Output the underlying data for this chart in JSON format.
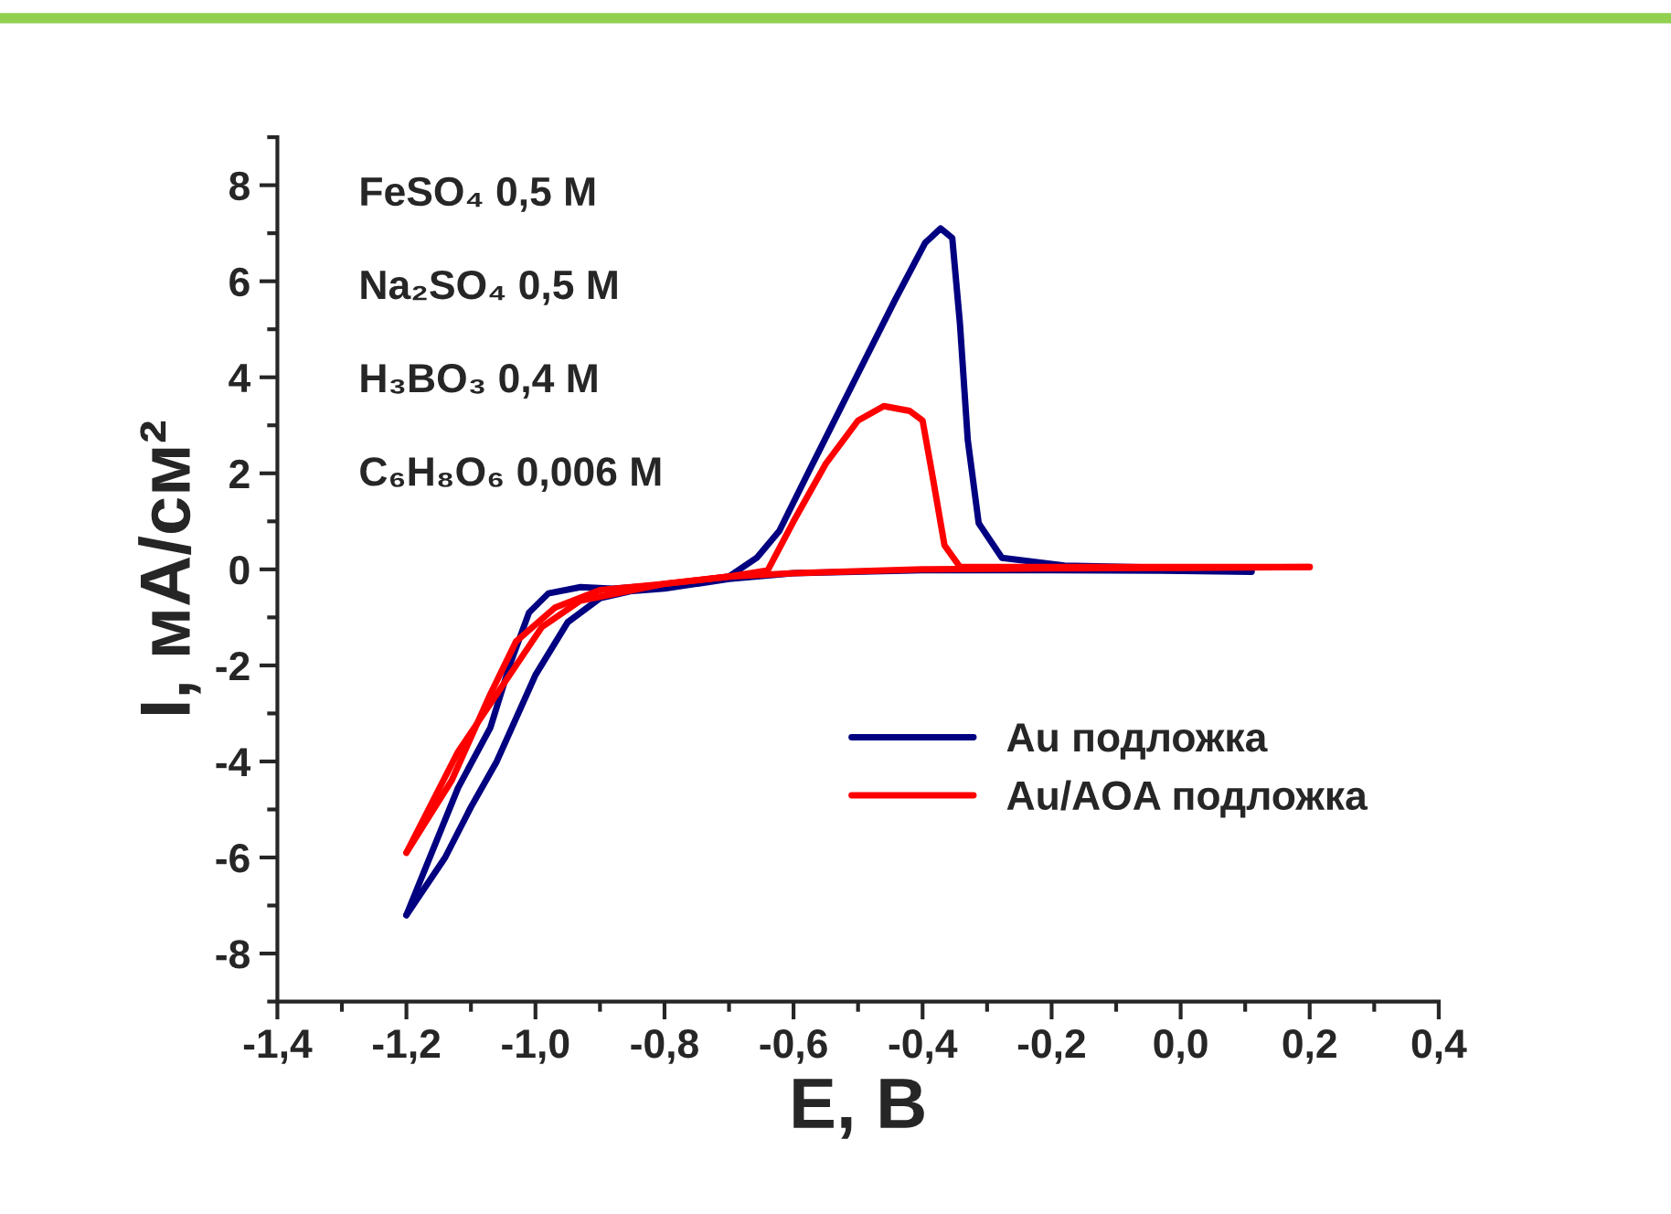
{
  "chart_data": {
    "type": "line",
    "xlabel": "E, В",
    "ylabel": "I, мА/см²",
    "annotations": [
      "FeSO₄ 0,5 M",
      "Na₂SO₄ 0,5 M",
      "H₃BO₃ 0,4 M",
      "C₆H₈O₆ 0,006 M"
    ],
    "series": [
      {
        "name": "Au подложка",
        "color": "#000080",
        "x": [
          0.11,
          0.0,
          -0.2,
          -0.4,
          -0.6,
          -0.7,
          -0.8,
          -0.85,
          -0.9,
          -0.95,
          -1.0,
          -1.06,
          -1.1,
          -1.14,
          -1.2
        ],
        "values": [
          -0.05,
          -0.03,
          -0.02,
          -0.02,
          -0.08,
          -0.2,
          -0.4,
          -0.45,
          -0.6,
          -1.1,
          -2.2,
          -4.0,
          -4.95,
          -6.0,
          -7.2
        ]
      },
      {
        "color": "#000080",
        "x": [
          -1.2,
          -1.12,
          -1.07,
          -1.04,
          -1.01,
          -0.98,
          -0.93,
          -0.88,
          -0.8,
          -0.7,
          -0.657,
          -0.622,
          -0.574,
          -0.503,
          -0.443,
          -0.396,
          -0.372,
          -0.354,
          -0.342,
          -0.33,
          -0.313,
          -0.277,
          -0.18,
          0.0,
          0.11
        ],
        "values": [
          -7.2,
          -4.55,
          -3.3,
          -2.0,
          -0.9,
          -0.5,
          -0.37,
          -0.4,
          -0.32,
          -0.15,
          0.24,
          0.8,
          2.1,
          4.0,
          5.6,
          6.8,
          7.1,
          6.9,
          5.1,
          2.7,
          0.96,
          0.24,
          0.08,
          0.03,
          0.0
        ]
      },
      {
        "name": "Au/AOA подложка",
        "color": "#ff0000",
        "x": [
          0.2,
          0.0,
          -0.2,
          -0.4,
          -0.6,
          -0.7,
          -0.8,
          -0.93,
          -0.99,
          -1.04,
          -1.12,
          -1.2
        ],
        "values": [
          0.05,
          0.03,
          0.02,
          0.0,
          -0.08,
          -0.15,
          -0.3,
          -0.65,
          -1.2,
          -2.2,
          -3.8,
          -5.9
        ]
      },
      {
        "color": "#ff0000",
        "x": [
          -1.2,
          -1.13,
          -1.07,
          -1.03,
          -0.97,
          -0.9,
          -0.8,
          -0.7,
          -0.64,
          -0.6,
          -0.55,
          -0.5,
          -0.46,
          -0.42,
          -0.4,
          -0.384,
          -0.366,
          -0.342,
          -0.2,
          0.0,
          0.2
        ],
        "values": [
          -5.9,
          -4.4,
          -2.6,
          -1.5,
          -0.8,
          -0.43,
          -0.3,
          -0.15,
          -0.02,
          1.0,
          2.2,
          3.1,
          3.4,
          3.3,
          3.1,
          1.9,
          0.5,
          0.05,
          0.05,
          0.05,
          0.05
        ]
      }
    ],
    "xlim": [
      -1.4,
      0.4
    ],
    "xticks": [
      {
        "value": -1.4,
        "label": "-1,4"
      },
      {
        "value": -1.2,
        "label": "-1,2"
      },
      {
        "value": -1.0,
        "label": "-1,0"
      },
      {
        "value": -0.8,
        "label": "-0,8"
      },
      {
        "value": -0.6,
        "label": "-0,6"
      },
      {
        "value": -0.4,
        "label": "-0,4"
      },
      {
        "value": -0.2,
        "label": "-0,2"
      },
      {
        "value": 0.0,
        "label": "0,0"
      },
      {
        "value": 0.2,
        "label": "0,2"
      },
      {
        "value": 0.4,
        "label": "0,4"
      }
    ],
    "ylim": [
      -9,
      9
    ],
    "yticks": [
      -8,
      -6,
      -4,
      -2,
      0,
      2,
      4,
      6,
      8
    ],
    "grid": false,
    "legend": "bottom right",
    "line_style": "solid"
  }
}
